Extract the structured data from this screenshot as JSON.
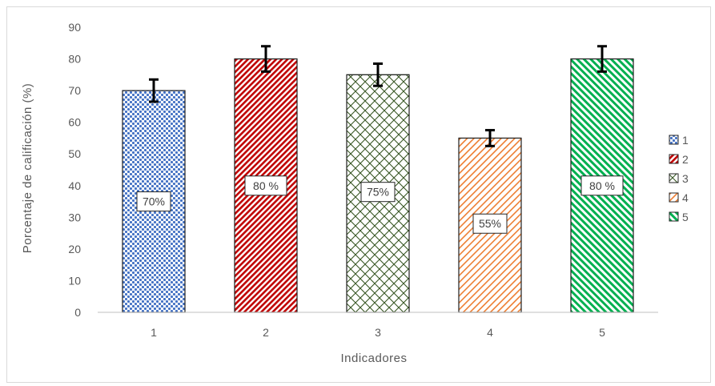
{
  "chart_data": {
    "type": "bar",
    "categories": [
      "1",
      "2",
      "3",
      "4",
      "5"
    ],
    "values": [
      70,
      80,
      75,
      55,
      80
    ],
    "error_bars": [
      3.5,
      4,
      3.5,
      2.5,
      4
    ],
    "data_labels": [
      "70%",
      "80 %",
      "75%",
      "55%",
      "80 %"
    ],
    "xlabel": "Indicadores",
    "ylabel": "Porcentaje de calificación (%)",
    "ylim": [
      0,
      90
    ],
    "yticks": [
      0,
      10,
      20,
      30,
      40,
      50,
      60,
      70,
      80,
      90
    ],
    "grid": false,
    "legend": {
      "position": "right",
      "entries": [
        "1",
        "2",
        "3",
        "4",
        "5"
      ]
    },
    "series_colors": [
      "#4472c4",
      "#c00000",
      "#375623",
      "#ed7d31",
      "#00b050"
    ],
    "patterns": [
      "dotted",
      "dense-diagonal",
      "weave",
      "wide-diagonal",
      "diagonal"
    ]
  }
}
